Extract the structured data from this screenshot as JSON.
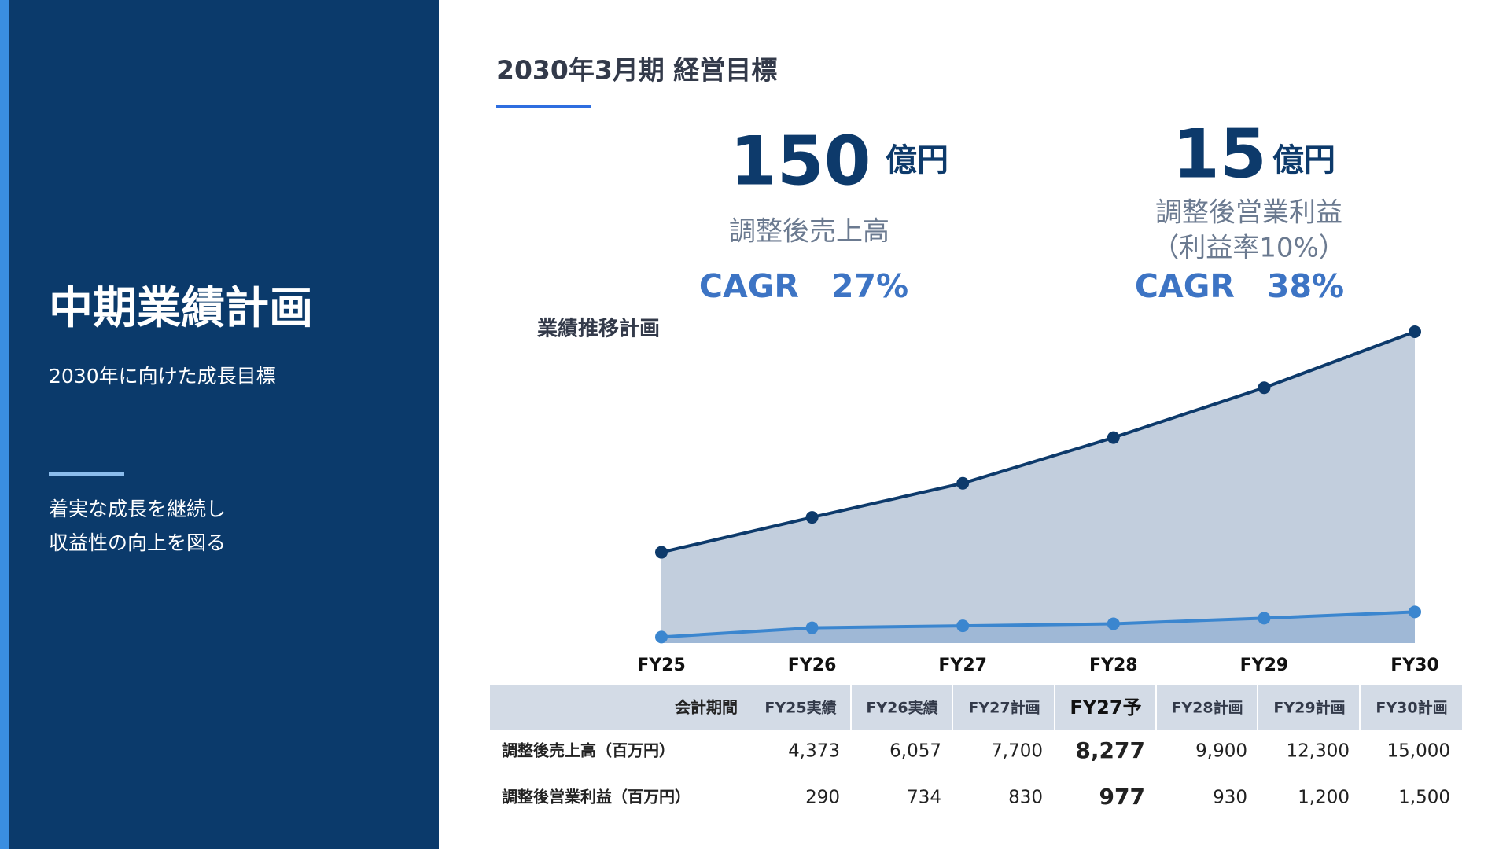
{
  "sidebar": {
    "title": "中期業績計画",
    "subtitle": "2030年に向けた成長目標",
    "lines": [
      "着実な成長を継続し",
      "収益性の向上を図る"
    ]
  },
  "heading": "2030年3月期 経営目標",
  "kpis": [
    {
      "value": 150,
      "unit": "億円",
      "label": "調整後売上高",
      "cagr": "CAGR　27%"
    },
    {
      "value": 15,
      "unit": "億円",
      "label": "調整後営業利益",
      "note": "（利益率10%）",
      "cagr": "CAGR　38%"
    }
  ],
  "chart_data": {
    "type": "area",
    "title": "業績推移計画",
    "categories": [
      "FY25",
      "FY26",
      "FY27",
      "FY28",
      "FY29",
      "FY30"
    ],
    "series": [
      {
        "name": "調整後売上高",
        "color": "#0d3a6b",
        "fill": "#c2cedd",
        "values": [
          4373,
          6057,
          7700,
          9900,
          12300,
          15000
        ]
      },
      {
        "name": "調整後営業利益",
        "color": "#3b86cf",
        "fill": "#9fb8d6",
        "values": [
          290,
          734,
          830,
          930,
          1200,
          1500
        ]
      }
    ],
    "ylim": [
      0,
      15000
    ]
  },
  "table": {
    "header": [
      "会計期間",
      "FY25実績",
      "FY26実績",
      "FY27計画",
      "FY27予",
      "FY28計画",
      "FY29計画",
      "FY30計画"
    ],
    "rows": [
      [
        "調整後売上高（百万円）",
        "4,373",
        "6,057",
        "7,700",
        "8,277",
        "9,900",
        "12,300",
        "15,000"
      ],
      [
        "調整後営業利益（百万円）",
        "290",
        "734",
        "830",
        "977",
        "930",
        "1,200",
        "1,500"
      ]
    ]
  }
}
